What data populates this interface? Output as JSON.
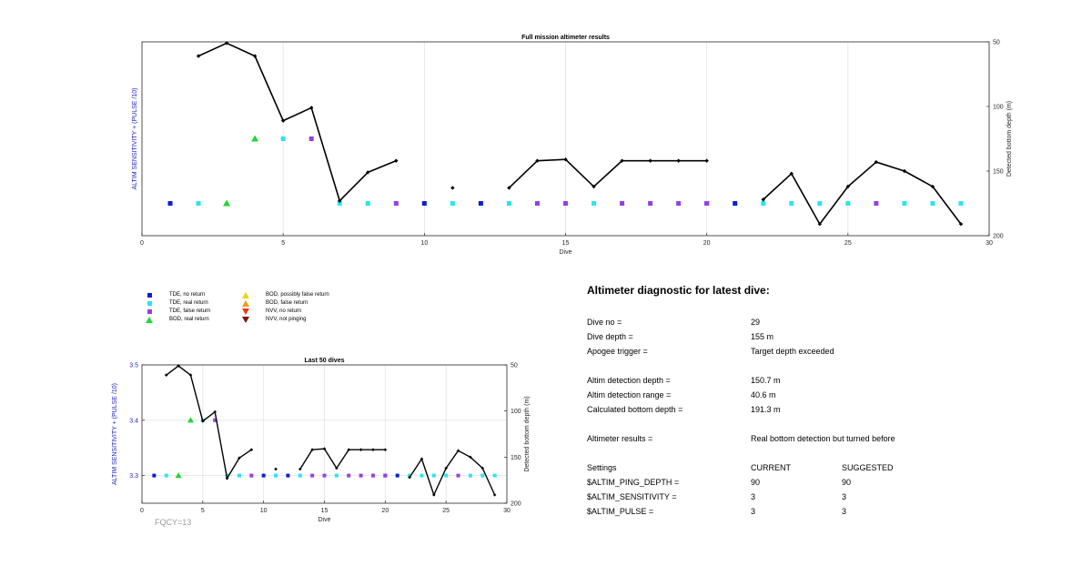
{
  "colors": {
    "tde_no_return": "#0a1fd4",
    "tde_real_return": "#27e6f0",
    "tde_false_return": "#9440e6",
    "bod_real_return": "#1ed63a",
    "bod_possibly_false": "#f2d417",
    "bod_false_return": "#f29c17",
    "nvv_no_return": "#e63c14",
    "nvv_not_pinging": "#7a1408",
    "left_axis_label": "#1a1ac8",
    "line": "#000000"
  },
  "legend": [
    {
      "label": "TDE, no return",
      "marker": "square",
      "color_key": "tde_no_return"
    },
    {
      "label": "TDE, real return",
      "marker": "square",
      "color_key": "tde_real_return"
    },
    {
      "label": "TDE, false return",
      "marker": "square",
      "color_key": "tde_false_return"
    },
    {
      "label": "BOD, real return",
      "marker": "triangle-up",
      "color_key": "bod_real_return"
    },
    {
      "label": "BOD, possibly false return",
      "marker": "triangle-up",
      "color_key": "bod_possibly_false"
    },
    {
      "label": "BOD, false return",
      "marker": "triangle-up",
      "color_key": "bod_false_return"
    },
    {
      "label": "NVV, no return",
      "marker": "triangle-down",
      "color_key": "nvv_no_return"
    },
    {
      "label": "NVV, not pinging",
      "marker": "triangle-down",
      "color_key": "nvv_not_pinging"
    }
  ],
  "chart_data": [
    {
      "type": "scatter",
      "title": "Full mission altimeter results",
      "xlabel": "Dive",
      "ylabel": "ALTIM SENSITIVITY + (PULSE /10)",
      "ylabel_right": "Detected bottom depth (m)",
      "xlim": [
        0,
        30
      ],
      "xticks": [
        0,
        5,
        10,
        15,
        20,
        25,
        30
      ],
      "ylim": [
        3.25,
        3.55
      ],
      "yticks": [],
      "ylim_right": [
        50,
        200
      ],
      "yticks_right": [
        50,
        100,
        150,
        200
      ],
      "grid": "vertical",
      "series": [
        {
          "kind": "markers",
          "x": [
            1,
            10,
            12,
            20,
            21
          ],
          "y": [
            3.3,
            3.3,
            3.3,
            3.3,
            3.3
          ],
          "marker": "square",
          "color_key": "tde_no_return"
        },
        {
          "kind": "markers",
          "x": [
            2,
            5,
            7,
            8,
            11,
            13,
            16,
            22,
            23,
            24,
            25,
            27,
            28,
            29
          ],
          "y": [
            3.3,
            3.4,
            3.3,
            3.3,
            3.3,
            3.3,
            3.3,
            3.3,
            3.3,
            3.3,
            3.3,
            3.3,
            3.3,
            3.3
          ],
          "marker": "square",
          "color_key": "tde_real_return"
        },
        {
          "kind": "markers",
          "x": [
            6,
            9,
            14,
            15,
            17,
            18,
            19,
            20,
            26
          ],
          "y": [
            3.4,
            3.3,
            3.3,
            3.3,
            3.3,
            3.3,
            3.3,
            3.3,
            3.3
          ],
          "marker": "square",
          "color_key": "tde_false_return"
        },
        {
          "kind": "markers",
          "x": [
            3,
            4
          ],
          "y": [
            3.3,
            3.4
          ],
          "marker": "triangle-up",
          "color_key": "bod_real_return"
        },
        {
          "kind": "depth",
          "axis": "right",
          "segments": [
            [
              [
                2,
                61
              ],
              [
                3,
                51
              ],
              [
                4,
                61
              ],
              [
                5,
                111
              ],
              [
                6,
                101
              ],
              [
                7,
                173
              ],
              [
                8,
                151
              ],
              [
                9,
                142
              ]
            ],
            [
              [
                11,
                163
              ]
            ],
            [
              [
                13,
                163
              ],
              [
                14,
                142
              ],
              [
                15,
                141
              ],
              [
                16,
                162
              ],
              [
                17,
                142
              ],
              [
                18,
                142
              ],
              [
                19,
                142
              ],
              [
                20,
                142
              ]
            ],
            [
              [
                22,
                172
              ],
              [
                23,
                152
              ],
              [
                24,
                191
              ],
              [
                25,
                162
              ],
              [
                26,
                143
              ],
              [
                27,
                150
              ],
              [
                28,
                162
              ],
              [
                29,
                191
              ]
            ]
          ]
        }
      ]
    },
    {
      "type": "scatter",
      "title": "Last 50 dives",
      "xlabel": "Dive",
      "ylabel": "ALTIM SENSITIVITY + (PULSE /10)",
      "ylabel_right": "Detected bottom depth (m)",
      "xlim": [
        0,
        30
      ],
      "xticks": [
        0,
        5,
        10,
        15,
        20,
        25,
        30
      ],
      "ylim": [
        3.25,
        3.5
      ],
      "yticks": [
        3.3,
        3.4,
        3.5
      ],
      "ylim_right": [
        50,
        200
      ],
      "yticks_right": [
        50,
        100,
        150,
        200
      ],
      "grid": "both",
      "series": [
        {
          "kind": "markers",
          "x": [
            1,
            10,
            12,
            20,
            21
          ],
          "y": [
            3.3,
            3.3,
            3.3,
            3.3,
            3.3
          ],
          "marker": "square",
          "color_key": "tde_no_return"
        },
        {
          "kind": "markers",
          "x": [
            2,
            5,
            7,
            8,
            11,
            13,
            16,
            22,
            23,
            24,
            25,
            27,
            28,
            29
          ],
          "y": [
            3.3,
            3.4,
            3.3,
            3.3,
            3.3,
            3.3,
            3.3,
            3.3,
            3.3,
            3.3,
            3.3,
            3.3,
            3.3,
            3.3
          ],
          "marker": "square",
          "color_key": "tde_real_return"
        },
        {
          "kind": "markers",
          "x": [
            6,
            9,
            14,
            15,
            17,
            18,
            19,
            20,
            26
          ],
          "y": [
            3.4,
            3.3,
            3.3,
            3.3,
            3.3,
            3.3,
            3.3,
            3.3,
            3.3
          ],
          "marker": "square",
          "color_key": "tde_false_return"
        },
        {
          "kind": "markers",
          "x": [
            3,
            4
          ],
          "y": [
            3.3,
            3.4
          ],
          "marker": "triangle-up",
          "color_key": "bod_real_return"
        },
        {
          "kind": "depth",
          "axis": "right",
          "segments": [
            [
              [
                2,
                61
              ],
              [
                3,
                51
              ],
              [
                4,
                61
              ],
              [
                5,
                111
              ],
              [
                6,
                101
              ],
              [
                7,
                173
              ],
              [
                8,
                151
              ],
              [
                9,
                142
              ]
            ],
            [
              [
                11,
                163
              ]
            ],
            [
              [
                13,
                163
              ],
              [
                14,
                142
              ],
              [
                15,
                141
              ],
              [
                16,
                162
              ],
              [
                17,
                142
              ],
              [
                18,
                142
              ],
              [
                19,
                142
              ],
              [
                20,
                142
              ]
            ],
            [
              [
                22,
                172
              ],
              [
                23,
                152
              ],
              [
                24,
                191
              ],
              [
                25,
                162
              ],
              [
                26,
                143
              ],
              [
                27,
                150
              ],
              [
                28,
                162
              ],
              [
                29,
                191
              ]
            ]
          ]
        }
      ]
    }
  ],
  "fqcy": "FQCY=13",
  "diagnostic": {
    "title": "Altimeter diagnostic for latest dive:",
    "rows": [
      {
        "label": "Dive no =",
        "value": "29"
      },
      {
        "label": "Dive depth =",
        "value": "155 m"
      },
      {
        "label": "Apogee trigger =",
        "value": "Target depth exceeded"
      },
      {
        "label": "Altim detection depth =",
        "value": "150.7 m"
      },
      {
        "label": "Altim detection range =",
        "value": "40.6 m"
      },
      {
        "label": "Calculated bottom depth =",
        "value": "191.3 m"
      },
      {
        "label": "Altimeter results =",
        "value": "Real bottom detection but turned before"
      }
    ],
    "settings": {
      "header": {
        "label": "Settings",
        "current": "CURRENT",
        "suggested": "SUGGESTED"
      },
      "rows": [
        {
          "label": "$ALTIM_PING_DEPTH =",
          "current": "90",
          "suggested": "90"
        },
        {
          "label": "$ALTIM_SENSITIVITY =",
          "current": "3",
          "suggested": "3"
        },
        {
          "label": "$ALTIM_PULSE =",
          "current": "3",
          "suggested": "3"
        }
      ]
    }
  }
}
